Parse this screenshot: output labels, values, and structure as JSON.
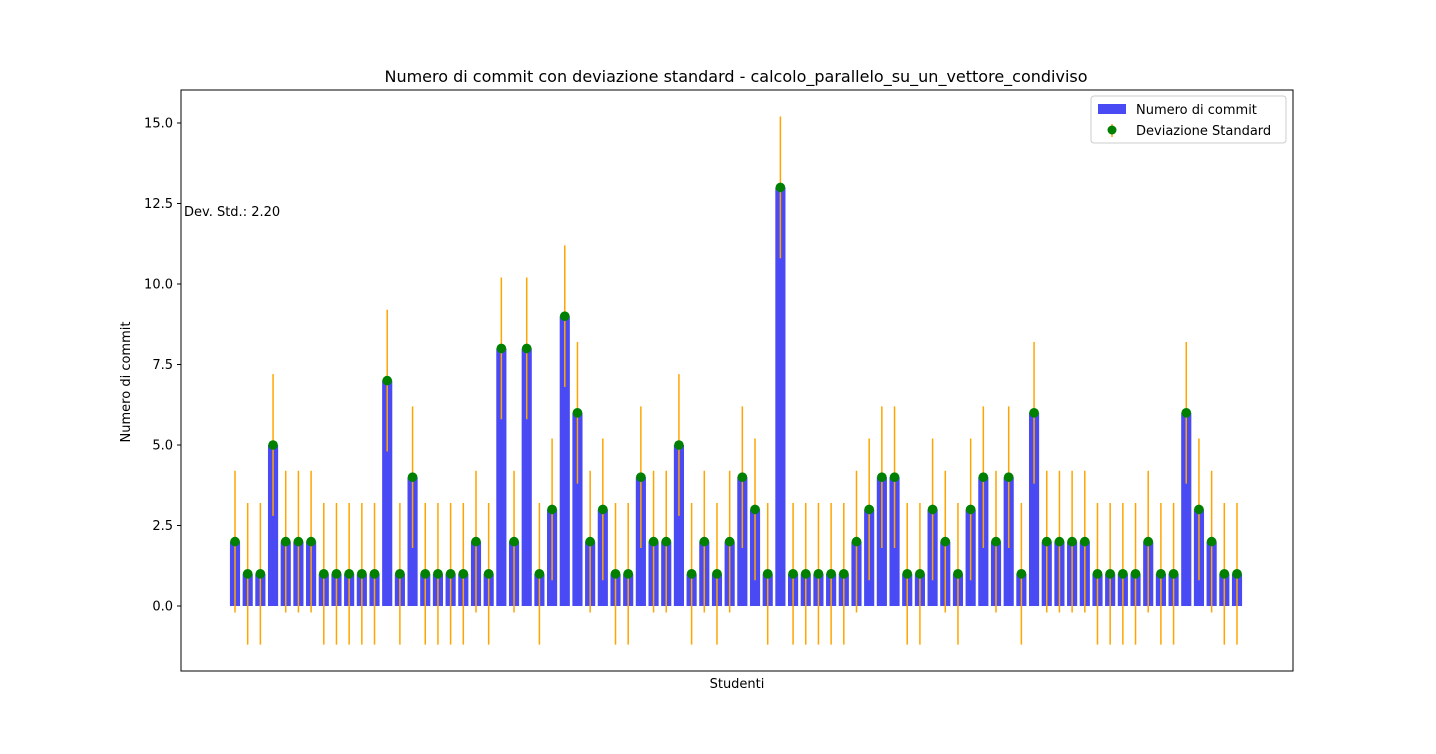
{
  "chart_data": {
    "type": "bar",
    "title": "Numero di commit con deviazione standard - calcolo_parallelo_su_un_vettore_condiviso",
    "xlabel": "Studenti",
    "ylabel": "Numero di commit",
    "ylim": [
      -2,
      16
    ],
    "yticks": [
      0.0,
      2.5,
      5.0,
      7.5,
      10.0,
      12.5,
      15.0
    ],
    "ytick_labels": [
      "0.0",
      "2.5",
      "5.0",
      "7.5",
      "10.0",
      "12.5",
      "15.0"
    ],
    "annotation": "Dev. Std.: 2.20",
    "std": 2.2,
    "grid": false,
    "legend_position": "top-right",
    "legend": [
      "Numero di commit",
      "Deviazione Standard"
    ],
    "colors": {
      "bar": "#4a4af5",
      "errorbar": "#ffa500",
      "marker": "#008000"
    },
    "series": [
      {
        "name": "Numero di commit",
        "values": [
          2,
          1,
          1,
          5,
          2,
          2,
          2,
          1,
          1,
          1,
          1,
          1,
          7,
          1,
          4,
          1,
          1,
          1,
          1,
          2,
          1,
          8,
          2,
          8,
          1,
          3,
          9,
          6,
          2,
          3,
          1,
          1,
          4,
          2,
          2,
          5,
          1,
          2,
          1,
          2,
          4,
          3,
          1,
          13,
          1,
          1,
          1,
          1,
          1,
          2,
          3,
          4,
          4,
          1,
          1,
          3,
          2,
          1,
          3,
          4,
          2,
          4,
          1,
          6,
          2,
          2,
          2,
          2,
          1,
          1,
          1,
          1,
          2,
          1,
          1,
          6,
          3,
          2,
          1,
          1
        ]
      }
    ]
  }
}
